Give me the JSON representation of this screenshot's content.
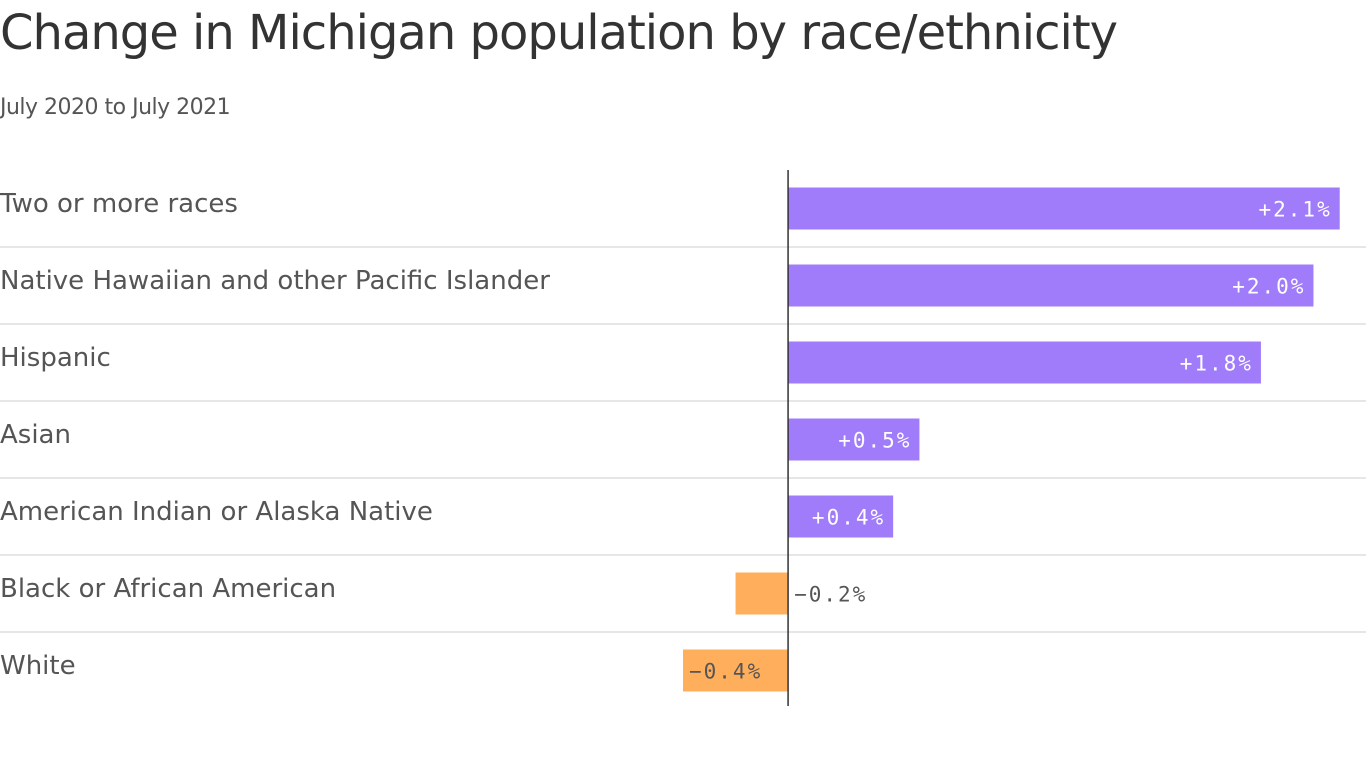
{
  "chart_data": {
    "type": "bar",
    "orientation": "horizontal",
    "title": "Change in Michigan population by race/ethnicity",
    "subtitle": "July 2020 to July 2021",
    "categories": [
      "Two or more races",
      "Native Hawaiian and other Pacific Islander",
      "Hispanic",
      "Asian",
      "American Indian or Alaska Native",
      "Black or African American",
      "White"
    ],
    "values": [
      2.1,
      2.0,
      1.8,
      0.5,
      0.4,
      -0.2,
      -0.4
    ],
    "value_labels": [
      "+2.1%",
      "+2.0%",
      "+1.8%",
      "+0.5%",
      "+0.4%",
      "−0.2%",
      "−0.4%"
    ],
    "positive_color": "#a07cfa",
    "negative_color": "#ffae5c",
    "xlim": [
      -3,
      2.2
    ]
  }
}
